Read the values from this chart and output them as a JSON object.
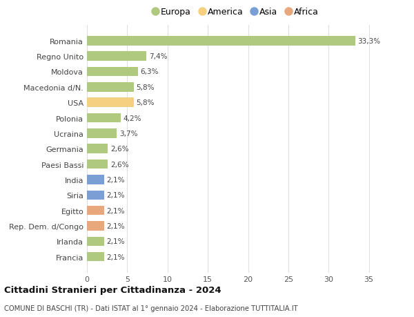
{
  "categories": [
    "Francia",
    "Irlanda",
    "Rep. Dem. d/Congo",
    "Egitto",
    "Siria",
    "India",
    "Paesi Bassi",
    "Germania",
    "Ucraina",
    "Polonia",
    "USA",
    "Macedonia d/N.",
    "Moldova",
    "Regno Unito",
    "Romania"
  ],
  "values": [
    2.1,
    2.1,
    2.1,
    2.1,
    2.1,
    2.1,
    2.6,
    2.6,
    3.7,
    4.2,
    5.8,
    5.8,
    6.3,
    7.4,
    33.3
  ],
  "labels": [
    "2,1%",
    "2,1%",
    "2,1%",
    "2,1%",
    "2,1%",
    "2,1%",
    "2,6%",
    "2,6%",
    "3,7%",
    "4,2%",
    "5,8%",
    "5,8%",
    "6,3%",
    "7,4%",
    "33,3%"
  ],
  "colors": [
    "#afc97e",
    "#afc97e",
    "#e8a87c",
    "#e8a87c",
    "#7a9fd4",
    "#7a9fd4",
    "#afc97e",
    "#afc97e",
    "#afc97e",
    "#afc97e",
    "#f5d080",
    "#afc97e",
    "#afc97e",
    "#afc97e",
    "#afc97e"
  ],
  "continent_labels": [
    "Europa",
    "America",
    "Asia",
    "Africa"
  ],
  "continent_colors": [
    "#afc97e",
    "#f5d080",
    "#7a9fd4",
    "#e8a87c"
  ],
  "title": "Cittadini Stranieri per Cittadinanza - 2024",
  "subtitle": "COMUNE DI BASCHI (TR) - Dati ISTAT al 1° gennaio 2024 - Elaborazione TUTTITALIA.IT",
  "xlim": [
    0,
    37
  ],
  "xticks": [
    0,
    5,
    10,
    15,
    20,
    25,
    30,
    35
  ],
  "background_color": "#ffffff",
  "grid_color": "#e0e0e0",
  "bar_height": 0.6
}
